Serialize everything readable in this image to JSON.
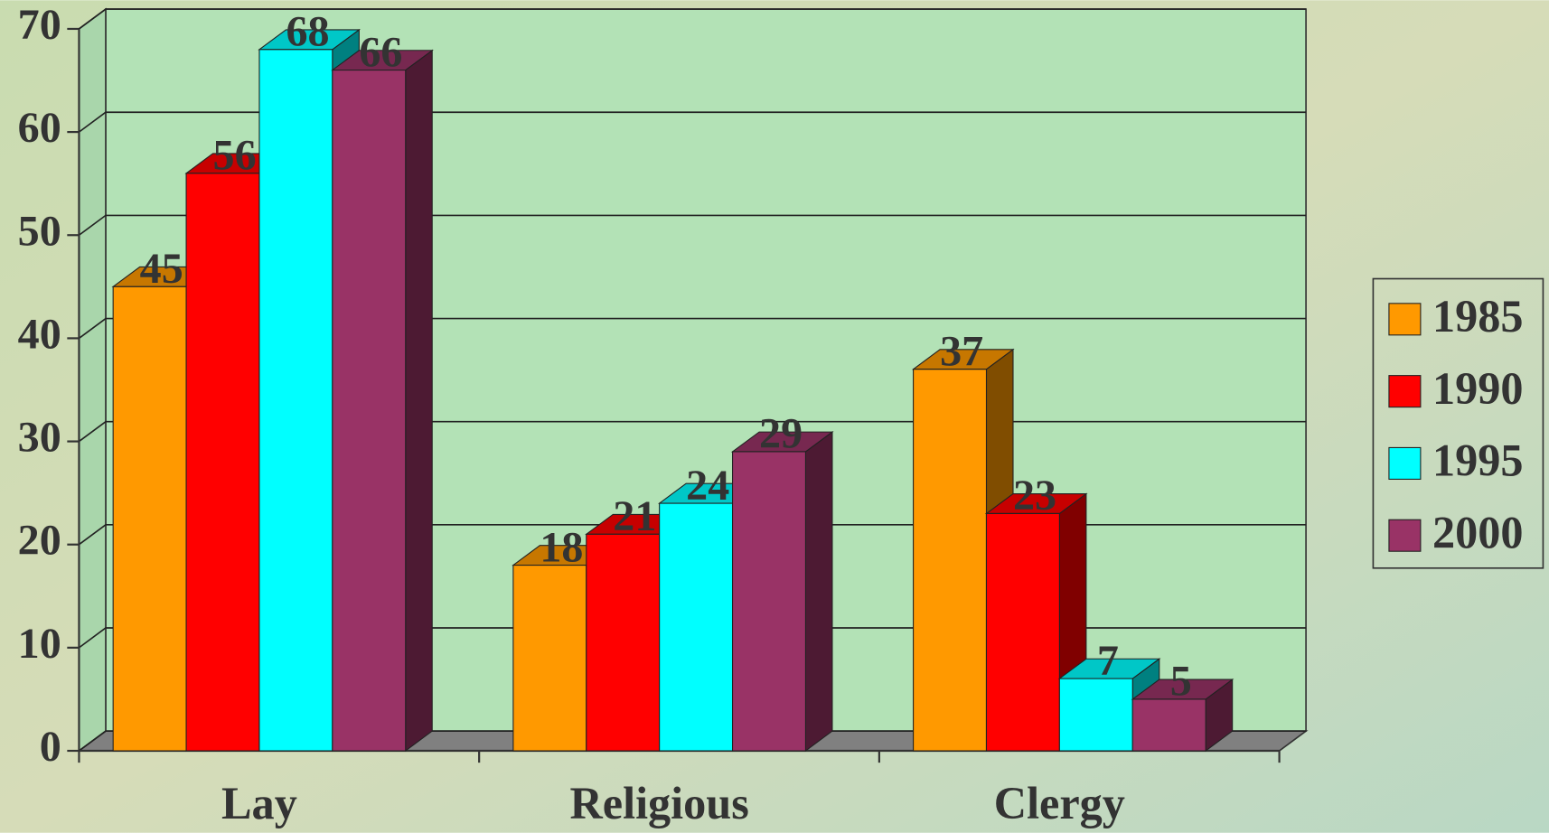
{
  "chart_data": {
    "type": "bar3d",
    "categories": [
      "Lay",
      "Religious",
      "Clergy"
    ],
    "series": [
      {
        "name": "1985",
        "color": "#FF9900",
        "values": [
          45,
          18,
          37
        ]
      },
      {
        "name": "1990",
        "color": "#FF0000",
        "values": [
          56,
          21,
          23
        ]
      },
      {
        "name": "1995",
        "color": "#00FFFF",
        "values": [
          68,
          24,
          7
        ]
      },
      {
        "name": "2000",
        "color": "#993366",
        "values": [
          66,
          29,
          5
        ]
      }
    ],
    "ylim": [
      0,
      70
    ],
    "yticks": [
      0,
      10,
      20,
      30,
      40,
      50,
      60,
      70
    ],
    "grid": true,
    "legend": "right"
  }
}
